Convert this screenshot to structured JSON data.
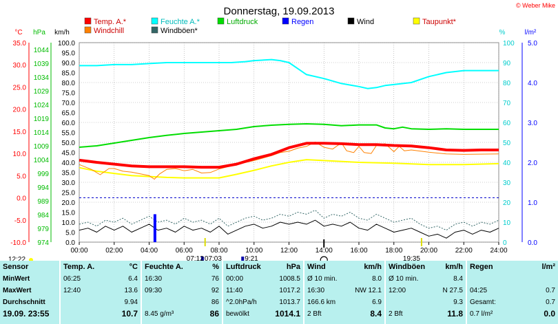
{
  "title": "Donnerstag, 19.09.2013",
  "copyright": "© Weber Mike",
  "legend": [
    {
      "label": "Temp. A.*",
      "color": "#ff0000"
    },
    {
      "label": "Feuchte A.*",
      "color": "#00ffff"
    },
    {
      "label": "Luftdruck",
      "color": "#00dd00"
    },
    {
      "label": "Regen",
      "color": "#0000ff"
    },
    {
      "label": "Wind",
      "color": "#000000"
    },
    {
      "label": "Taupunkt*",
      "color": "#ffff00"
    },
    {
      "label": "Windchill",
      "color": "#ff8000"
    },
    {
      "label": "Windböen*",
      "color": "#336666"
    }
  ],
  "axis_units": {
    "temp": "°C",
    "pressure": "hPa",
    "wind": "km/h",
    "humidity": "%",
    "rain": "l/m²"
  },
  "axis_colors": {
    "temp": "#ff0000",
    "pressure": "#00bb00",
    "wind": "#000000",
    "humidity": "#00cccc",
    "rain": "#0000ff"
  },
  "sun": {
    "sunrise": "07:12",
    "sunset": "19:35",
    "moonrise": "07:03",
    "moonset": "9:21",
    "left_time": "12:22"
  },
  "chart_data": {
    "type": "line",
    "x_range": [
      "00:00",
      "24:00"
    ],
    "x_ticks": [
      "00:00",
      "02:00",
      "04:00",
      "06:00",
      "08:00",
      "10:00",
      "12:00",
      "14:00",
      "16:00",
      "18:00",
      "20:00",
      "22:00",
      "24:00"
    ],
    "axes": {
      "temp": {
        "unit": "°C",
        "range": [
          -10,
          35
        ],
        "ticks": [
          "35.0",
          "30.0",
          "25.0",
          "20.0",
          "15.0",
          "10.0",
          "5.0",
          "0.0",
          "-5.0",
          "-10.0"
        ]
      },
      "pressure": {
        "unit": "hPa",
        "range": [
          974,
          1046.5
        ],
        "ticks": [
          "1044",
          "1039",
          "1034",
          "1029",
          "1024",
          "1019",
          "1014",
          "1009",
          "1004",
          "999",
          "994",
          "989",
          "984",
          "979",
          "974"
        ]
      },
      "wind": {
        "unit": "km/h",
        "range": [
          0,
          100
        ],
        "ticks": [
          "100.0",
          "95.0",
          "90.0",
          "85.0",
          "80.0",
          "75.0",
          "70.0",
          "65.0",
          "60.0",
          "55.0",
          "50.0",
          "45.0",
          "40.0",
          "35.0",
          "30.0",
          "25.0",
          "20.0",
          "15.0",
          "10.0",
          "5.0",
          "0.0"
        ]
      },
      "humidity": {
        "unit": "%",
        "range": [
          0,
          100
        ],
        "ticks": [
          "100",
          "90",
          "80",
          "70",
          "60",
          "50",
          "40",
          "30",
          "20",
          "10",
          "0"
        ]
      },
      "rain": {
        "unit": "l/m²",
        "range": [
          0,
          5
        ],
        "ticks": [
          "5.0",
          "4.0",
          "3.0",
          "2.0",
          "1.0",
          "0.0"
        ]
      }
    },
    "series": [
      {
        "name": "Feuchte A.*",
        "axis": "humidity",
        "color": "#00ffff",
        "x": [
          0,
          1,
          2,
          3,
          4,
          5,
          6,
          7,
          8,
          8.7,
          9.5,
          10,
          11,
          11.5,
          12,
          12.5,
          13,
          14,
          15,
          16,
          16.5,
          17,
          17.5,
          18,
          19,
          20,
          21,
          22,
          24
        ],
        "y": [
          88.5,
          88.5,
          89,
          89,
          89.5,
          90,
          90,
          90,
          90,
          90,
          90.5,
          91,
          91.5,
          91,
          90,
          87,
          84,
          82,
          79.5,
          78,
          77,
          77.5,
          78.5,
          79,
          80,
          83,
          85,
          86,
          86
        ]
      },
      {
        "name": "Luftdruck",
        "axis": "pressure",
        "color": "#00dd00",
        "x": [
          0,
          1,
          2,
          3,
          4,
          5,
          6,
          7,
          8,
          9,
          10,
          11,
          12,
          13,
          14,
          15,
          16,
          17,
          17.5,
          18,
          18.5,
          19,
          20,
          21,
          22,
          24
        ],
        "y": [
          1008.5,
          1009,
          1010,
          1011,
          1012,
          1012.8,
          1013.5,
          1014,
          1014.5,
          1015,
          1016,
          1016.5,
          1016.8,
          1017,
          1016.8,
          1016.3,
          1016.6,
          1016.6,
          1015.5,
          1015.2,
          1015.8,
          1015.2,
          1015,
          1015.2,
          1015,
          1015
        ]
      },
      {
        "name": "Taupunkt*",
        "axis": "temp",
        "color": "#ffff00",
        "x": [
          0,
          1,
          2,
          3,
          4,
          5,
          6,
          7,
          8,
          9,
          10,
          11,
          12,
          13,
          14,
          16,
          18,
          20,
          22,
          24
        ],
        "y": [
          6.8,
          6.0,
          5.5,
          5.0,
          4.8,
          4.6,
          4.5,
          4.5,
          4.5,
          5.3,
          6.2,
          7.2,
          8.0,
          8.6,
          8.4,
          8.0,
          7.8,
          7.5,
          7.5,
          7.7
        ]
      },
      {
        "name": "Windchill",
        "axis": "temp",
        "color": "#ff8000",
        "x": [
          0,
          0.7,
          1.2,
          1.7,
          2,
          2.5,
          3,
          3.5,
          4,
          4.3,
          4.6,
          5,
          5.5,
          6,
          6.5,
          7,
          7.5,
          8,
          9,
          10,
          11,
          11.5,
          12,
          12.5,
          13,
          13.5,
          14,
          14.5,
          15,
          15.3,
          15.7,
          16,
          16.3,
          16.7,
          17,
          17.5,
          18,
          18.3,
          18.6,
          19,
          20,
          21,
          22,
          24
        ],
        "y": [
          7.5,
          6.4,
          5.2,
          6.6,
          6.6,
          6.0,
          5.8,
          5.4,
          5.0,
          4.2,
          5.4,
          6.4,
          6.6,
          6.1,
          6.4,
          5.6,
          5.7,
          6.5,
          7.5,
          8.4,
          9.5,
          10.2,
          10.5,
          11.2,
          11.6,
          12.6,
          11.4,
          11.0,
          12.4,
          10.6,
          10.2,
          11.6,
          10.2,
          10.0,
          11.8,
          12.2,
          10.4,
          11.6,
          10.6,
          10.8,
          10.3,
          9.9,
          9.8,
          9.9
        ]
      },
      {
        "name": "Temp. A.*",
        "axis": "temp",
        "color": "#ff0000",
        "x": [
          0,
          1,
          2,
          3,
          4,
          5,
          6,
          7,
          8,
          9,
          10,
          11,
          12,
          13,
          14,
          15,
          16,
          17,
          18,
          19,
          20,
          21,
          22,
          23,
          24
        ],
        "y": [
          8.5,
          8.0,
          7.6,
          7.2,
          7.0,
          7.0,
          7.0,
          6.9,
          6.9,
          7.6,
          8.8,
          9.8,
          11.3,
          12.3,
          12.3,
          12.2,
          12.0,
          12.0,
          11.8,
          11.7,
          11.3,
          10.8,
          10.7,
          10.8,
          10.8
        ]
      },
      {
        "name": "Windböen*",
        "axis": "wind",
        "color": "#336666",
        "x": [
          0,
          0.5,
          1,
          1.5,
          2,
          2.5,
          3,
          3.5,
          4,
          4.5,
          5,
          5.5,
          6,
          6.5,
          7,
          7.5,
          8,
          8.5,
          9,
          9.5,
          10,
          10.5,
          11,
          11.5,
          12,
          12.5,
          13,
          13.5,
          14,
          14.5,
          15,
          15.5,
          16,
          16.5,
          17,
          17.5,
          18,
          18.5,
          19,
          19.5,
          20,
          20.5,
          21,
          21.5,
          22,
          22.5,
          23,
          23.5,
          24
        ],
        "y": [
          9,
          10,
          8,
          11,
          10,
          12,
          9,
          11,
          13,
          10,
          11,
          9,
          12,
          10,
          11,
          9,
          12,
          8,
          10,
          12,
          13,
          11,
          12,
          14,
          13,
          15,
          14,
          16,
          12,
          14,
          13,
          15,
          12,
          11,
          14,
          12,
          10,
          11,
          12,
          9,
          7,
          8,
          6,
          9,
          10,
          8,
          10,
          9,
          11
        ]
      },
      {
        "name": "Wind",
        "axis": "wind",
        "color": "#000000",
        "x": [
          0,
          0.5,
          1,
          1.5,
          2,
          2.5,
          3,
          3.5,
          4,
          4.5,
          5,
          5.5,
          6,
          6.5,
          7,
          7.5,
          8,
          8.5,
          9,
          9.5,
          10,
          10.5,
          11,
          11.5,
          12,
          12.5,
          13,
          13.5,
          14,
          14.5,
          15,
          15.5,
          16,
          16.5,
          17,
          17.5,
          18,
          18.5,
          19,
          19.5,
          20,
          20.5,
          21,
          21.5,
          22,
          22.5,
          23,
          23.5,
          24
        ],
        "y": [
          6,
          7,
          5,
          8,
          6,
          8,
          5,
          7,
          9,
          6,
          7,
          5,
          8,
          6,
          7,
          5,
          8,
          4,
          6,
          8,
          9,
          7,
          8,
          10,
          9,
          10,
          9,
          11,
          8,
          9,
          8,
          10,
          7,
          6,
          9,
          7,
          5,
          6,
          7,
          5,
          3,
          4,
          2,
          5,
          6,
          4,
          6,
          5,
          7
        ]
      },
      {
        "name": "Regen",
        "axis": "rain",
        "color": "#0000ff",
        "type": "bar",
        "x": [
          4.33
        ],
        "y": [
          0.7
        ]
      }
    ]
  },
  "table": [
    {
      "rows": [
        [
          "Sensor",
          ""
        ],
        [
          "MinWert",
          ""
        ],
        [
          "MaxWert",
          ""
        ],
        [
          "Durchschnitt",
          ""
        ],
        [
          "19.09. 23:55",
          ""
        ]
      ]
    },
    {
      "rows": [
        [
          "Temp. A.",
          "°C"
        ],
        [
          "06:25",
          "6.4"
        ],
        [
          "12:40",
          "13.6"
        ],
        [
          "",
          "9.94"
        ],
        [
          "",
          "10.7"
        ]
      ]
    },
    {
      "rows": [
        [
          "Feuchte A.",
          "%"
        ],
        [
          "16:30",
          "76"
        ],
        [
          "09:30",
          "92"
        ],
        [
          "",
          "86"
        ],
        [
          "8.45 g/m³",
          "86"
        ]
      ]
    },
    {
      "rows": [
        [
          "Luftdruck",
          "hPa"
        ],
        [
          "00:00",
          "1008.5"
        ],
        [
          "11:40",
          "1017.2"
        ],
        [
          "^2.0hPa/h",
          "1013.7"
        ],
        [
          "bewölkt",
          "1014.1"
        ]
      ]
    },
    {
      "rows": [
        [
          "Wind",
          "km/h"
        ],
        [
          "Ø 10 min.",
          "8.0"
        ],
        [
          "16:30",
          "NW 12.1"
        ],
        [
          "166.6 km",
          "6.9"
        ],
        [
          "2 Bft",
          "8.4"
        ]
      ]
    },
    {
      "rows": [
        [
          "Windböen",
          "km/h"
        ],
        [
          "Ø 10 min.",
          "8.4"
        ],
        [
          "12:00",
          "N 27.5"
        ],
        [
          "",
          "9.3"
        ],
        [
          "2 Bft",
          "11.8"
        ]
      ]
    },
    {
      "rows": [
        [
          "Regen",
          "l/m²"
        ],
        [
          "",
          ""
        ],
        [
          "04:25",
          "0.7"
        ],
        [
          "Gesamt:",
          "0.7"
        ],
        [
          "0.7 l/m²",
          "0.0"
        ]
      ]
    }
  ]
}
